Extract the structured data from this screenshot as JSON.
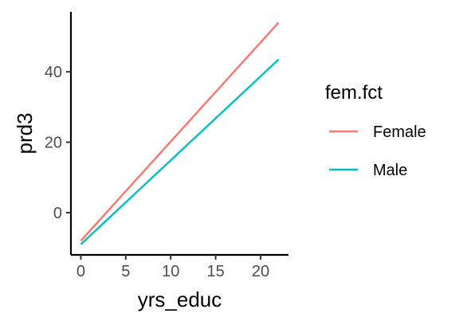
{
  "chart_data": {
    "type": "line",
    "xlabel": "yrs_educ",
    "ylabel": "prd3",
    "xlim": [
      -1.1,
      23.1
    ],
    "ylim": [
      -12,
      57
    ],
    "x_ticks": [
      0,
      5,
      10,
      15,
      20
    ],
    "y_ticks": [
      0,
      20,
      40
    ],
    "grid": false,
    "legend": {
      "title": "fem.fct",
      "placement": "right"
    },
    "series": [
      {
        "name": "Female",
        "color": "#F8766D",
        "x": [
          0,
          22
        ],
        "y": [
          -8,
          54
        ]
      },
      {
        "name": "Male",
        "color": "#00BFC4",
        "x": [
          0,
          22
        ],
        "y": [
          -9,
          43.5
        ]
      }
    ]
  }
}
